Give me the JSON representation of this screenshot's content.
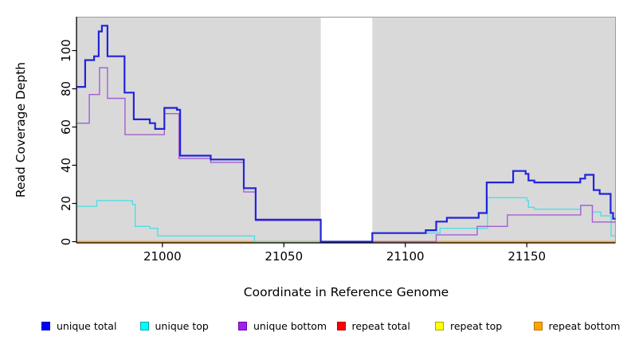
{
  "chart_data": {
    "type": "line",
    "subtype": "step-after",
    "title": "",
    "xlabel": "Coordinate in Reference Genome",
    "ylabel": "Read Coverage Depth",
    "xlim": [
      20964.8,
      21186.5
    ],
    "ylim": [
      0,
      117.5
    ],
    "x_ticks": [
      21000,
      21050,
      21100,
      21150
    ],
    "y_ticks": [
      0,
      20,
      40,
      60,
      80,
      100
    ],
    "grid": false,
    "panel_bg": "#d9d9d9",
    "panel_border": "#9c9c9c",
    "gap_region": {
      "x0": 21065.2,
      "x1": 21086.4,
      "color": "#ffffff"
    },
    "series": [
      {
        "name": "repeat total",
        "color": "#e8192c",
        "width": 1.4,
        "points": [
          [
            20964.8,
            0
          ],
          [
            21186.5,
            0
          ]
        ]
      },
      {
        "name": "repeat top",
        "color": "#f2ef1c",
        "width": 1.4,
        "points": [
          [
            20964.8,
            0
          ],
          [
            21186.5,
            0
          ]
        ]
      },
      {
        "name": "repeat bottom",
        "color": "#ff9d1f",
        "width": 1.7,
        "points": [
          [
            20964.8,
            0
          ],
          [
            21186.5,
            0
          ]
        ]
      },
      {
        "name": "unique top",
        "color": "#52dde6",
        "width": 1.4,
        "points": [
          [
            20964.8,
            18.5
          ],
          [
            20973,
            21.5
          ],
          [
            20987.7,
            19.5
          ],
          [
            20988.8,
            8
          ],
          [
            20994.8,
            7
          ],
          [
            20998.1,
            3
          ],
          [
            21037.9,
            0
          ],
          [
            21086.4,
            4.5
          ],
          [
            21114.3,
            7
          ],
          [
            21133.8,
            23
          ],
          [
            21150,
            21.5
          ],
          [
            21150.7,
            18
          ],
          [
            21153.1,
            17
          ],
          [
            21172.2,
            19
          ],
          [
            21177,
            15.5
          ],
          [
            21180.5,
            13.5
          ],
          [
            21184.7,
            3
          ],
          [
            21186.5,
            3
          ]
        ]
      },
      {
        "name": "unique bottom",
        "color": "#a35fd1",
        "width": 1.4,
        "points": [
          [
            20964.8,
            62
          ],
          [
            20969.9,
            77
          ],
          [
            20974.1,
            91
          ],
          [
            20977.4,
            75
          ],
          [
            20984.6,
            56
          ],
          [
            21000.8,
            67
          ],
          [
            21006.8,
            43.5
          ],
          [
            21019.9,
            41.5
          ],
          [
            21033.5,
            26
          ],
          [
            21038.4,
            11
          ],
          [
            21065.2,
            0
          ],
          [
            21112.7,
            3.6
          ],
          [
            21129.6,
            8
          ],
          [
            21142,
            14
          ],
          [
            21172.2,
            19
          ],
          [
            21177,
            10.3
          ],
          [
            21186.5,
            10.3
          ]
        ]
      },
      {
        "name": "unique total",
        "color": "#2323dc",
        "width": 2.2,
        "points": [
          [
            20964.8,
            81
          ],
          [
            20968.2,
            95
          ],
          [
            20971.9,
            97
          ],
          [
            20973.8,
            110
          ],
          [
            20975.1,
            113
          ],
          [
            20977.4,
            97
          ],
          [
            20984.4,
            78
          ],
          [
            20988.2,
            64
          ],
          [
            20994.8,
            62
          ],
          [
            20997,
            59
          ],
          [
            21000.8,
            70
          ],
          [
            21006,
            69
          ],
          [
            21007.3,
            45
          ],
          [
            21019.9,
            43
          ],
          [
            21033.5,
            28
          ],
          [
            21038.4,
            11.5
          ],
          [
            21065.2,
            0
          ],
          [
            21086.4,
            4.5
          ],
          [
            21108.4,
            6
          ],
          [
            21112.7,
            10.5
          ],
          [
            21117.1,
            12.5
          ],
          [
            21130.2,
            15
          ],
          [
            21133.5,
            31
          ],
          [
            21144.4,
            37
          ],
          [
            21149.5,
            35.5
          ],
          [
            21150.7,
            32
          ],
          [
            21153.1,
            31
          ],
          [
            21172,
            33
          ],
          [
            21174,
            35
          ],
          [
            21177.5,
            27
          ],
          [
            21180,
            25
          ],
          [
            21184.5,
            15
          ],
          [
            21185.5,
            12
          ],
          [
            21186.5,
            12
          ]
        ]
      }
    ],
    "legend_position": "bottom"
  },
  "legend": {
    "items": [
      {
        "label": "unique total",
        "fill": "#0000ff",
        "border": "#0000bb"
      },
      {
        "label": "unique top",
        "fill": "#00ffff",
        "border": "#00a8b0"
      },
      {
        "label": "unique bottom",
        "fill": "#a020f0",
        "border": "#6e00a8"
      },
      {
        "label": "repeat total",
        "fill": "#ff0000",
        "border": "#b80000"
      },
      {
        "label": "repeat top",
        "fill": "#ffff00",
        "border": "#a8a800"
      },
      {
        "label": "repeat bottom",
        "fill": "#ffa500",
        "border": "#b87400"
      }
    ]
  }
}
